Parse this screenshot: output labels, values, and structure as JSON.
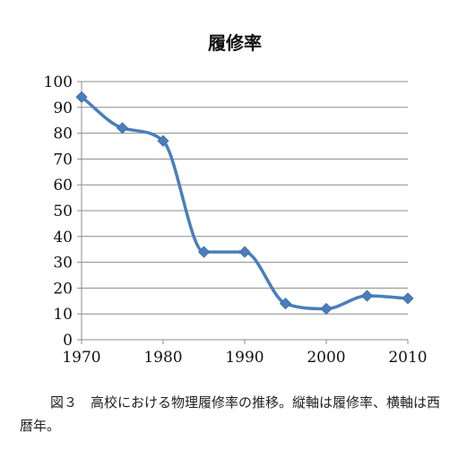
{
  "chart_data": {
    "type": "line",
    "title": "履修率",
    "xlabel": "",
    "ylabel": "",
    "x": [
      1970,
      1975,
      1980,
      1985,
      1990,
      1995,
      2000,
      2005,
      2010
    ],
    "series": [
      {
        "values": [
          94,
          82,
          77,
          34,
          34,
          14,
          12,
          17,
          16
        ]
      }
    ],
    "xlim": [
      1970,
      2010
    ],
    "ylim": [
      0,
      100
    ],
    "x_ticks": [
      1970,
      1980,
      1990,
      2000,
      2010
    ],
    "y_ticks": [
      0,
      10,
      20,
      30,
      40,
      50,
      60,
      70,
      80,
      90,
      100
    ],
    "grid": "horizontal",
    "smoothed": true,
    "marker": "diamond",
    "line_color": "#4a7ebb",
    "legend": "none"
  },
  "caption": "図３　高校における物理履修率の推移。縦軸は履修率、横軸は西暦年。"
}
